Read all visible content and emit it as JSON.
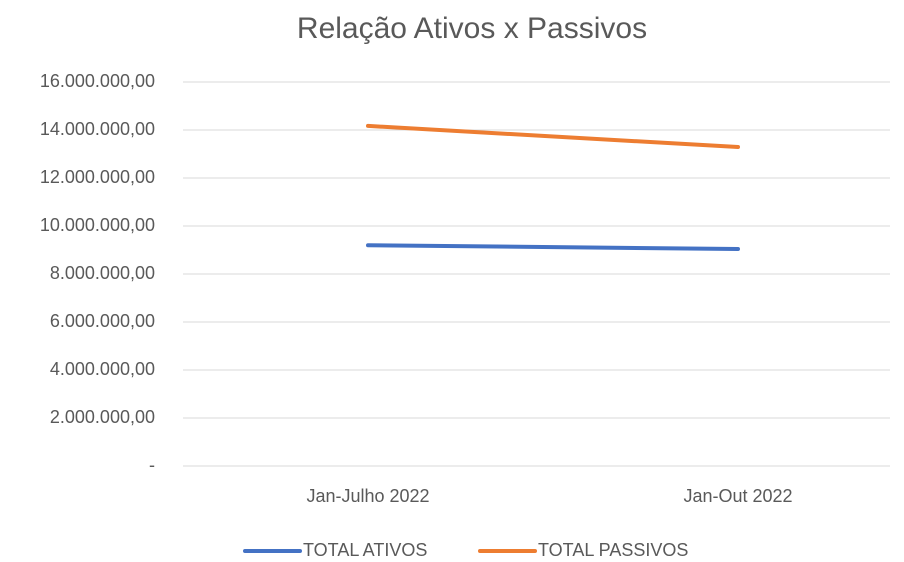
{
  "chart_data": {
    "type": "line",
    "title": "Relação Ativos x Passivos",
    "categories": [
      "Jan-Julho 2022",
      "Jan-Out 2022"
    ],
    "series": [
      {
        "name": "TOTAL ATIVOS",
        "color": "#4472c4",
        "values": [
          9200000,
          9040000
        ]
      },
      {
        "name": "TOTAL PASSIVOS",
        "color": "#ed7d31",
        "values": [
          14170000,
          13290000
        ]
      }
    ],
    "ylim": [
      0,
      16000000
    ],
    "yticks": [
      {
        "value": 0,
        "label": "-"
      },
      {
        "value": 2000000,
        "label": "2.000.000,00"
      },
      {
        "value": 4000000,
        "label": "4.000.000,00"
      },
      {
        "value": 6000000,
        "label": "6.000.000,00"
      },
      {
        "value": 8000000,
        "label": "8.000.000,00"
      },
      {
        "value": 10000000,
        "label": "10.000.000,00"
      },
      {
        "value": 12000000,
        "label": "12.000.000,00"
      },
      {
        "value": 14000000,
        "label": "14.000.000,00"
      },
      {
        "value": 16000000,
        "label": "16.000.000,00"
      }
    ],
    "grid": true,
    "legend": "bottom"
  }
}
